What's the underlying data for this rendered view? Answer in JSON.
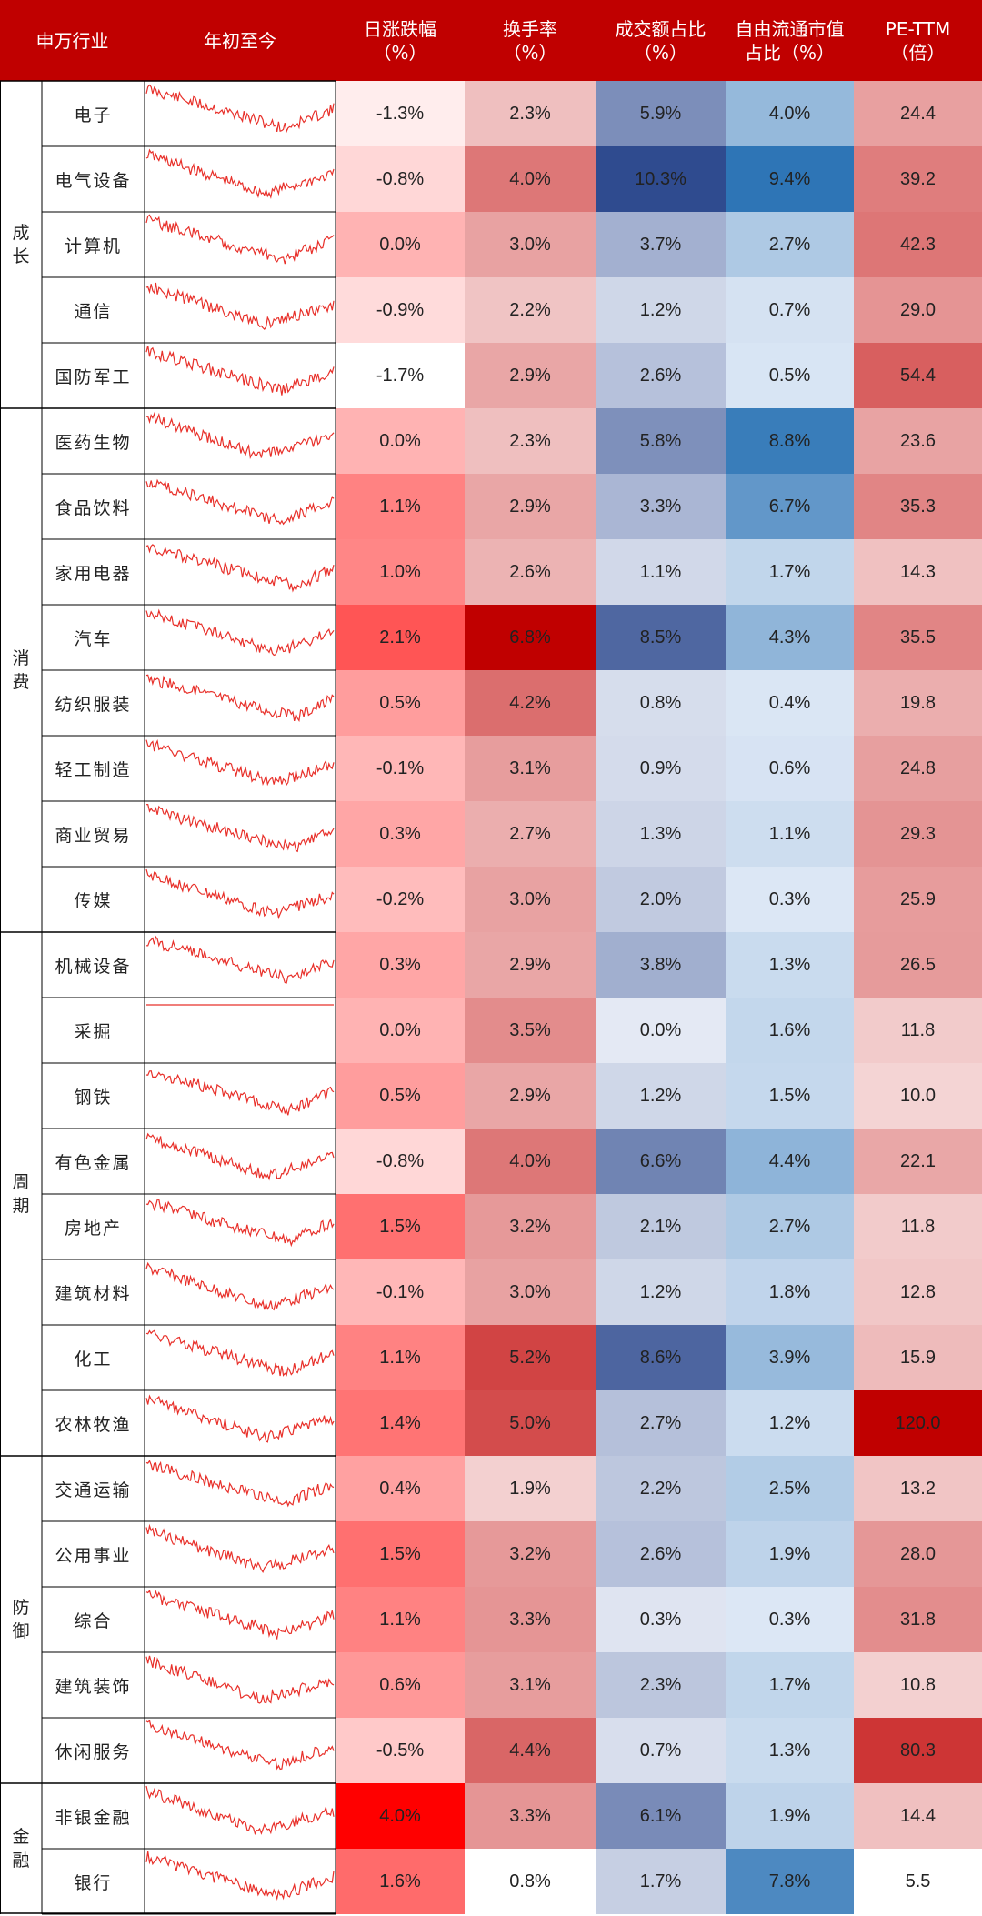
{
  "chart_data": {
    "type": "table",
    "header": {
      "industry": "申万行业",
      "ytd": "年初至今",
      "daily_change": [
        "日涨跌幅",
        "（%）"
      ],
      "turnover": [
        "换手率",
        "（%）"
      ],
      "volume_share": [
        "成交额占比",
        "（%）"
      ],
      "float_cap_share": [
        "自由流通市值",
        "占比（%）"
      ],
      "pe_ttm": [
        "PE-TTM",
        "（倍）"
      ]
    },
    "groups": [
      {
        "name": "成长",
        "rows": 5
      },
      {
        "name": "消费",
        "rows": 8
      },
      {
        "name": "周期",
        "rows": 8
      },
      {
        "name": "防御",
        "rows": 5
      },
      {
        "name": "金融",
        "rows": 2
      }
    ],
    "rows": [
      {
        "name": "电子",
        "daily": "-1.3%",
        "turnover": "2.3%",
        "volume": "5.9%",
        "float": "4.0%",
        "pe": "24.4"
      },
      {
        "name": "电气设备",
        "daily": "-0.8%",
        "turnover": "4.0%",
        "volume": "10.3%",
        "float": "9.4%",
        "pe": "39.2"
      },
      {
        "name": "计算机",
        "daily": "0.0%",
        "turnover": "3.0%",
        "volume": "3.7%",
        "float": "2.7%",
        "pe": "42.3"
      },
      {
        "name": "通信",
        "daily": "-0.9%",
        "turnover": "2.2%",
        "volume": "1.2%",
        "float": "0.7%",
        "pe": "29.0"
      },
      {
        "name": "国防军工",
        "daily": "-1.7%",
        "turnover": "2.9%",
        "volume": "2.6%",
        "float": "0.5%",
        "pe": "54.4"
      },
      {
        "name": "医药生物",
        "daily": "0.0%",
        "turnover": "2.3%",
        "volume": "5.8%",
        "float": "8.8%",
        "pe": "23.6"
      },
      {
        "name": "食品饮料",
        "daily": "1.1%",
        "turnover": "2.9%",
        "volume": "3.3%",
        "float": "6.7%",
        "pe": "35.3"
      },
      {
        "name": "家用电器",
        "daily": "1.0%",
        "turnover": "2.6%",
        "volume": "1.1%",
        "float": "1.7%",
        "pe": "14.3"
      },
      {
        "name": "汽车",
        "daily": "2.1%",
        "turnover": "6.8%",
        "volume": "8.5%",
        "float": "4.3%",
        "pe": "35.5"
      },
      {
        "name": "纺织服装",
        "daily": "0.5%",
        "turnover": "4.2%",
        "volume": "0.8%",
        "float": "0.4%",
        "pe": "19.8"
      },
      {
        "name": "轻工制造",
        "daily": "-0.1%",
        "turnover": "3.1%",
        "volume": "0.9%",
        "float": "0.6%",
        "pe": "24.8"
      },
      {
        "name": "商业贸易",
        "daily": "0.3%",
        "turnover": "2.7%",
        "volume": "1.3%",
        "float": "1.1%",
        "pe": "29.3"
      },
      {
        "name": "传媒",
        "daily": "-0.2%",
        "turnover": "3.0%",
        "volume": "2.0%",
        "float": "0.3%",
        "pe": "25.9"
      },
      {
        "name": "机械设备",
        "daily": "0.3%",
        "turnover": "2.9%",
        "volume": "3.8%",
        "float": "1.3%",
        "pe": "26.5"
      },
      {
        "name": "采掘",
        "daily": "0.0%",
        "turnover": "3.5%",
        "volume": "0.0%",
        "float": "1.6%",
        "pe": "11.8"
      },
      {
        "name": "钢铁",
        "daily": "0.5%",
        "turnover": "2.9%",
        "volume": "1.2%",
        "float": "1.5%",
        "pe": "10.0"
      },
      {
        "name": "有色金属",
        "daily": "-0.8%",
        "turnover": "4.0%",
        "volume": "6.6%",
        "float": "4.4%",
        "pe": "22.1"
      },
      {
        "name": "房地产",
        "daily": "1.5%",
        "turnover": "3.2%",
        "volume": "2.1%",
        "float": "2.7%",
        "pe": "11.8"
      },
      {
        "name": "建筑材料",
        "daily": "-0.1%",
        "turnover": "3.0%",
        "volume": "1.2%",
        "float": "1.8%",
        "pe": "12.8"
      },
      {
        "name": "化工",
        "daily": "1.1%",
        "turnover": "5.2%",
        "volume": "8.6%",
        "float": "3.9%",
        "pe": "15.9"
      },
      {
        "name": "农林牧渔",
        "daily": "1.4%",
        "turnover": "5.0%",
        "volume": "2.7%",
        "float": "1.2%",
        "pe": "120.0"
      },
      {
        "name": "交通运输",
        "daily": "0.4%",
        "turnover": "1.9%",
        "volume": "2.2%",
        "float": "2.5%",
        "pe": "13.2"
      },
      {
        "name": "公用事业",
        "daily": "1.5%",
        "turnover": "3.2%",
        "volume": "2.6%",
        "float": "1.9%",
        "pe": "28.0"
      },
      {
        "name": "综合",
        "daily": "1.1%",
        "turnover": "3.3%",
        "volume": "0.3%",
        "float": "0.3%",
        "pe": "31.8"
      },
      {
        "name": "建筑装饰",
        "daily": "0.6%",
        "turnover": "3.1%",
        "volume": "2.3%",
        "float": "1.7%",
        "pe": "10.8"
      },
      {
        "name": "休闲服务",
        "daily": "-0.5%",
        "turnover": "4.4%",
        "volume": "0.7%",
        "float": "1.3%",
        "pe": "80.3"
      },
      {
        "name": "非银金融",
        "daily": "4.0%",
        "turnover": "3.3%",
        "volume": "6.1%",
        "float": "1.9%",
        "pe": "14.4"
      },
      {
        "name": "银行",
        "daily": "1.6%",
        "turnover": "0.8%",
        "volume": "1.7%",
        "float": "7.8%",
        "pe": "5.5"
      }
    ],
    "colors": {
      "header_bg": "#c00000",
      "header_text": "#ffffff",
      "sparkline": "#e8302a",
      "heat_red_max": "#c00000",
      "heat_red_min": "#ffffff",
      "heat_blue_max": "#2e75b6",
      "heat_blue_min": "#ffffff",
      "volume_blue_max": "#2f4b8f",
      "grid_line": "#000000"
    }
  }
}
